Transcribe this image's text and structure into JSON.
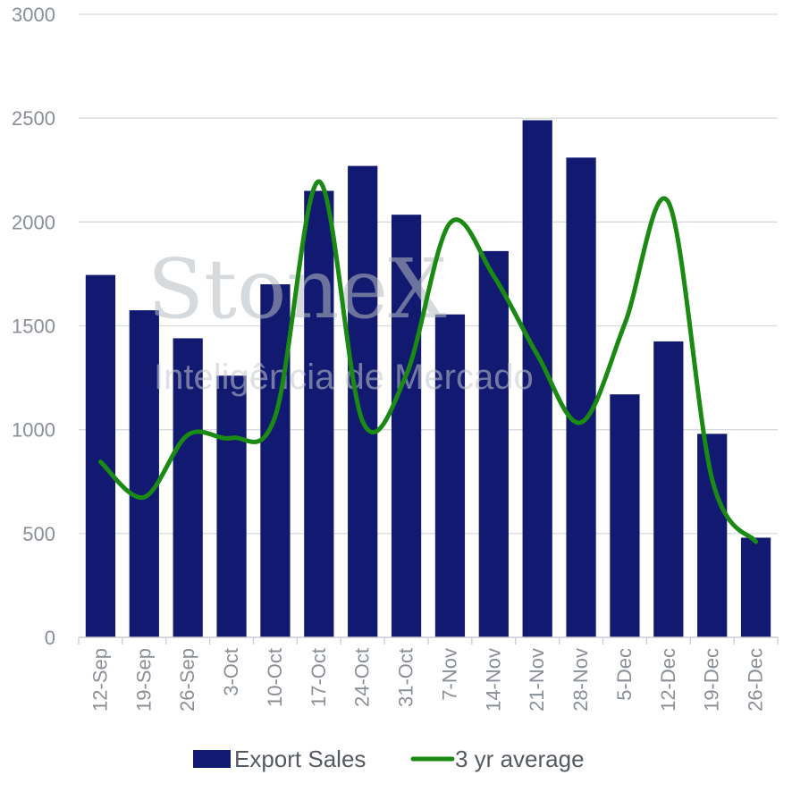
{
  "watermark": {
    "brand": "StoneX",
    "tagline": "Inteligência de Mercado"
  },
  "legend": {
    "bars_label": "Export Sales",
    "line_label": "3 yr average"
  },
  "chart_data": {
    "type": "bar",
    "categories": [
      "12-Sep",
      "19-Sep",
      "26-Sep",
      "3-Oct",
      "10-Oct",
      "17-Oct",
      "24-Oct",
      "31-Oct",
      "7-Nov",
      "14-Nov",
      "21-Nov",
      "28-Nov",
      "5-Dec",
      "12-Dec",
      "19-Dec",
      "26-Dec"
    ],
    "series": [
      {
        "name": "Export Sales",
        "type": "bar",
        "color": "#111a70",
        "values": [
          1745,
          1575,
          1440,
          1260,
          1700,
          2150,
          2270,
          2035,
          1555,
          1860,
          2490,
          2310,
          1170,
          1425,
          980,
          480
        ]
      },
      {
        "name": "3 yr average",
        "type": "line",
        "color": "#1a8a12",
        "values": [
          845,
          675,
          975,
          960,
          1065,
          2195,
          1040,
          1265,
          1995,
          1740,
          1360,
          1035,
          1510,
          2095,
          760,
          460
        ]
      }
    ],
    "yticks": [
      "0",
      "500",
      "1000",
      "1500",
      "2000",
      "2500",
      "3000"
    ],
    "ylim": [
      0,
      3000
    ],
    "grid": true,
    "legend_position": "bottom"
  }
}
